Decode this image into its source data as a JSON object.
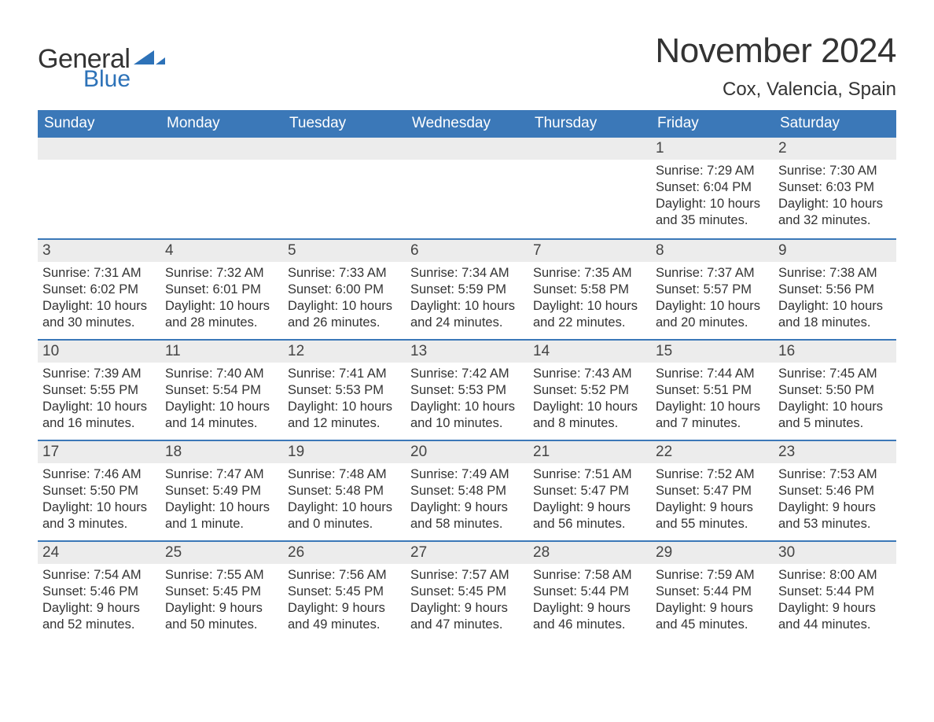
{
  "brand": {
    "word1": "General",
    "word2": "Blue",
    "icon_color": "#2d72b8"
  },
  "title": "November 2024",
  "location": "Cox, Valencia, Spain",
  "colors": {
    "header_bg": "#3b78b8",
    "header_text": "#ffffff",
    "daynum_bg": "#ececec",
    "text": "#333333",
    "rule": "#3b78b8"
  },
  "days_of_week": [
    "Sunday",
    "Monday",
    "Tuesday",
    "Wednesday",
    "Thursday",
    "Friday",
    "Saturday"
  ],
  "weeks": [
    [
      {
        "blank": true
      },
      {
        "blank": true
      },
      {
        "blank": true
      },
      {
        "blank": true
      },
      {
        "blank": true
      },
      {
        "n": "1",
        "sunrise": "Sunrise: 7:29 AM",
        "sunset": "Sunset: 6:04 PM",
        "daylight": "Daylight: 10 hours and 35 minutes."
      },
      {
        "n": "2",
        "sunrise": "Sunrise: 7:30 AM",
        "sunset": "Sunset: 6:03 PM",
        "daylight": "Daylight: 10 hours and 32 minutes."
      }
    ],
    [
      {
        "n": "3",
        "sunrise": "Sunrise: 7:31 AM",
        "sunset": "Sunset: 6:02 PM",
        "daylight": "Daylight: 10 hours and 30 minutes."
      },
      {
        "n": "4",
        "sunrise": "Sunrise: 7:32 AM",
        "sunset": "Sunset: 6:01 PM",
        "daylight": "Daylight: 10 hours and 28 minutes."
      },
      {
        "n": "5",
        "sunrise": "Sunrise: 7:33 AM",
        "sunset": "Sunset: 6:00 PM",
        "daylight": "Daylight: 10 hours and 26 minutes."
      },
      {
        "n": "6",
        "sunrise": "Sunrise: 7:34 AM",
        "sunset": "Sunset: 5:59 PM",
        "daylight": "Daylight: 10 hours and 24 minutes."
      },
      {
        "n": "7",
        "sunrise": "Sunrise: 7:35 AM",
        "sunset": "Sunset: 5:58 PM",
        "daylight": "Daylight: 10 hours and 22 minutes."
      },
      {
        "n": "8",
        "sunrise": "Sunrise: 7:37 AM",
        "sunset": "Sunset: 5:57 PM",
        "daylight": "Daylight: 10 hours and 20 minutes."
      },
      {
        "n": "9",
        "sunrise": "Sunrise: 7:38 AM",
        "sunset": "Sunset: 5:56 PM",
        "daylight": "Daylight: 10 hours and 18 minutes."
      }
    ],
    [
      {
        "n": "10",
        "sunrise": "Sunrise: 7:39 AM",
        "sunset": "Sunset: 5:55 PM",
        "daylight": "Daylight: 10 hours and 16 minutes."
      },
      {
        "n": "11",
        "sunrise": "Sunrise: 7:40 AM",
        "sunset": "Sunset: 5:54 PM",
        "daylight": "Daylight: 10 hours and 14 minutes."
      },
      {
        "n": "12",
        "sunrise": "Sunrise: 7:41 AM",
        "sunset": "Sunset: 5:53 PM",
        "daylight": "Daylight: 10 hours and 12 minutes."
      },
      {
        "n": "13",
        "sunrise": "Sunrise: 7:42 AM",
        "sunset": "Sunset: 5:53 PM",
        "daylight": "Daylight: 10 hours and 10 minutes."
      },
      {
        "n": "14",
        "sunrise": "Sunrise: 7:43 AM",
        "sunset": "Sunset: 5:52 PM",
        "daylight": "Daylight: 10 hours and 8 minutes."
      },
      {
        "n": "15",
        "sunrise": "Sunrise: 7:44 AM",
        "sunset": "Sunset: 5:51 PM",
        "daylight": "Daylight: 10 hours and 7 minutes."
      },
      {
        "n": "16",
        "sunrise": "Sunrise: 7:45 AM",
        "sunset": "Sunset: 5:50 PM",
        "daylight": "Daylight: 10 hours and 5 minutes."
      }
    ],
    [
      {
        "n": "17",
        "sunrise": "Sunrise: 7:46 AM",
        "sunset": "Sunset: 5:50 PM",
        "daylight": "Daylight: 10 hours and 3 minutes."
      },
      {
        "n": "18",
        "sunrise": "Sunrise: 7:47 AM",
        "sunset": "Sunset: 5:49 PM",
        "daylight": "Daylight: 10 hours and 1 minute."
      },
      {
        "n": "19",
        "sunrise": "Sunrise: 7:48 AM",
        "sunset": "Sunset: 5:48 PM",
        "daylight": "Daylight: 10 hours and 0 minutes."
      },
      {
        "n": "20",
        "sunrise": "Sunrise: 7:49 AM",
        "sunset": "Sunset: 5:48 PM",
        "daylight": "Daylight: 9 hours and 58 minutes."
      },
      {
        "n": "21",
        "sunrise": "Sunrise: 7:51 AM",
        "sunset": "Sunset: 5:47 PM",
        "daylight": "Daylight: 9 hours and 56 minutes."
      },
      {
        "n": "22",
        "sunrise": "Sunrise: 7:52 AM",
        "sunset": "Sunset: 5:47 PM",
        "daylight": "Daylight: 9 hours and 55 minutes."
      },
      {
        "n": "23",
        "sunrise": "Sunrise: 7:53 AM",
        "sunset": "Sunset: 5:46 PM",
        "daylight": "Daylight: 9 hours and 53 minutes."
      }
    ],
    [
      {
        "n": "24",
        "sunrise": "Sunrise: 7:54 AM",
        "sunset": "Sunset: 5:46 PM",
        "daylight": "Daylight: 9 hours and 52 minutes."
      },
      {
        "n": "25",
        "sunrise": "Sunrise: 7:55 AM",
        "sunset": "Sunset: 5:45 PM",
        "daylight": "Daylight: 9 hours and 50 minutes."
      },
      {
        "n": "26",
        "sunrise": "Sunrise: 7:56 AM",
        "sunset": "Sunset: 5:45 PM",
        "daylight": "Daylight: 9 hours and 49 minutes."
      },
      {
        "n": "27",
        "sunrise": "Sunrise: 7:57 AM",
        "sunset": "Sunset: 5:45 PM",
        "daylight": "Daylight: 9 hours and 47 minutes."
      },
      {
        "n": "28",
        "sunrise": "Sunrise: 7:58 AM",
        "sunset": "Sunset: 5:44 PM",
        "daylight": "Daylight: 9 hours and 46 minutes."
      },
      {
        "n": "29",
        "sunrise": "Sunrise: 7:59 AM",
        "sunset": "Sunset: 5:44 PM",
        "daylight": "Daylight: 9 hours and 45 minutes."
      },
      {
        "n": "30",
        "sunrise": "Sunrise: 8:00 AM",
        "sunset": "Sunset: 5:44 PM",
        "daylight": "Daylight: 9 hours and 44 minutes."
      }
    ]
  ]
}
